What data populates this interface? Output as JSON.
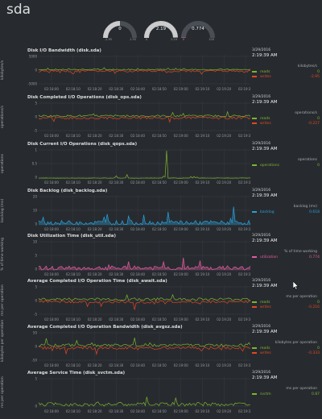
{
  "page": {
    "title": "sda"
  },
  "gauges": [
    {
      "value": "0",
      "min": "-2.95",
      "max": "2.95",
      "fraction": 0.5
    },
    {
      "value": "2.19",
      "min": "0",
      "max": "2.19",
      "fraction": 0.99
    },
    {
      "value": "0.774",
      "min": "0",
      "max": "100",
      "fraction": 0.008
    }
  ],
  "colors": {
    "green": "#7eb42a",
    "red": "#e6461e",
    "blue": "#2a9fd6",
    "pink": "#e05c9e",
    "grid": "#3a3f44",
    "axis": "#888888"
  },
  "legend_header": {
    "date": "3/29/2016",
    "time": "2:19:39 AM"
  },
  "charts": [
    {
      "title": "Disk I/O Bandwidth (disk.sda)",
      "ylabel": "kilobytes/s",
      "units": "kilobytes/s",
      "y_ticks": [
        "5000",
        "0",
        "-5000"
      ],
      "x_ticks": [
        "02:18:00",
        "02:18:10",
        "02:18:20",
        "02:18:30",
        "02:18:40",
        "02:18:50",
        "02:19:00",
        "02:19:10",
        "02:19:20",
        "02:19:30"
      ],
      "series": [
        {
          "name": "reads",
          "value": "0",
          "color": "green",
          "mode": "pos",
          "base": 0.5,
          "amp": 0.15
        },
        {
          "name": "writes",
          "value": "-2.95",
          "color": "red",
          "mode": "neg",
          "base": 0.5,
          "amp": 0.25
        }
      ]
    },
    {
      "title": "Disk Completed I/O Operations (disk_ops.sda)",
      "ylabel": "operations/s",
      "units": "operations/s",
      "y_ticks": [
        "5",
        "0",
        "-5"
      ],
      "x_ticks": [
        "02:18:00",
        "02:18:10",
        "02:18:20",
        "02:18:30",
        "02:18:40",
        "02:18:50",
        "02:19:00",
        "02:19:10",
        "02:19:20",
        "02:19:30"
      ],
      "series": [
        {
          "name": "reads",
          "value": "0",
          "color": "green",
          "mode": "pos",
          "base": 0.5,
          "amp": 0.25
        },
        {
          "name": "writes",
          "value": "-0.227",
          "color": "red",
          "mode": "neg",
          "base": 0.5,
          "amp": 0.3
        }
      ]
    },
    {
      "title": "Disk Current I/O Operations (disk_qops.sda)",
      "ylabel": "operations",
      "units": "operations",
      "y_ticks": [
        "1",
        "0.5",
        "0"
      ],
      "x_ticks": [
        "02:18:00",
        "02:18:10",
        "02:18:20",
        "02:18:30",
        "02:18:40",
        "02:18:50",
        "02:19:00",
        "02:19:10",
        "02:19:20",
        "02:19:30"
      ],
      "series": [
        {
          "name": "operations",
          "value": "0",
          "color": "green",
          "mode": "spike",
          "base": 0.98,
          "amp": 0.9
        }
      ]
    },
    {
      "title": "Disk Backlog (disk_backlog.sda)",
      "ylabel": "backlog (ms)",
      "units": "backlog (ms)",
      "y_ticks": [
        "20",
        "10",
        "0"
      ],
      "x_ticks": [
        "02:18:00",
        "02:18:10",
        "02:18:20",
        "02:18:30",
        "02:18:40",
        "02:18:50",
        "02:19:00",
        "02:19:10",
        "02:19:20",
        "02:19:30"
      ],
      "series": [
        {
          "name": "backlog",
          "value": "0.618",
          "color": "blue",
          "mode": "area",
          "base": 0.98,
          "amp": 0.6
        }
      ]
    },
    {
      "title": "Disk Utilization Time (disk_util.sda)",
      "ylabel": "% of time working",
      "units": "% of time working",
      "y_ticks": [
        "10",
        "5",
        "0"
      ],
      "x_ticks": [
        "02:18:00",
        "02:18:10",
        "02:18:20",
        "02:18:30",
        "02:18:40",
        "02:18:50",
        "02:19:00",
        "02:19:10",
        "02:19:20",
        "02:19:30"
      ],
      "series": [
        {
          "name": "utilization",
          "value": "0.774",
          "color": "pink",
          "mode": "area",
          "base": 0.98,
          "amp": 0.55
        }
      ]
    },
    {
      "title": "Average Completed I/O Operation Time (disk_await.sda)",
      "ylabel": "ms per operation",
      "units": "ms per operation",
      "y_ticks": [
        "5",
        "0",
        "-5"
      ],
      "x_ticks": [
        "02:18:00",
        "02:18:10",
        "02:18:20",
        "02:18:30",
        "02:18:40",
        "02:18:50",
        "02:19:00",
        "02:19:10",
        "02:19:20",
        "02:19:30"
      ],
      "series": [
        {
          "name": "reads",
          "value": "0",
          "color": "green",
          "mode": "pos",
          "base": 0.5,
          "amp": 0.35
        },
        {
          "name": "writes",
          "value": "-0.216",
          "color": "red",
          "mode": "neg",
          "base": 0.5,
          "amp": 0.35
        }
      ]
    },
    {
      "title": "Average Completed I/O Operation Bandwidth (disk_avgsz.sda)",
      "ylabel": "kilobytes per operation",
      "units": "kilobytes per operation",
      "y_ticks": [
        "50",
        "0",
        "-50"
      ],
      "x_ticks": [
        "02:18:00",
        "02:18:10",
        "02:18:20",
        "02:18:30",
        "02:18:40",
        "02:18:50",
        "02:19:00",
        "02:19:10",
        "02:19:20",
        "02:19:30"
      ],
      "series": [
        {
          "name": "reads",
          "value": "0",
          "color": "green",
          "mode": "pos",
          "base": 0.5,
          "amp": 0.35
        },
        {
          "name": "writes",
          "value": "-0.333",
          "color": "red",
          "mode": "neg",
          "base": 0.5,
          "amp": 0.35
        }
      ]
    },
    {
      "title": "Average Service Time (disk_svctm.sda)",
      "ylabel": "ms per operation",
      "units": "ms per operation",
      "y_ticks": [
        "5",
        "0"
      ],
      "x_ticks": [
        "02:18:00",
        "02:18:10",
        "02:18:20",
        "02:18:30",
        "02:18:40",
        "02:18:50",
        "02:19:00",
        "02:19:10",
        "02:19:20",
        "02:19:30"
      ],
      "series": [
        {
          "name": "svctm",
          "value": "0.87",
          "color": "green",
          "mode": "pos",
          "base": 0.95,
          "amp": 0.5
        }
      ]
    }
  ]
}
